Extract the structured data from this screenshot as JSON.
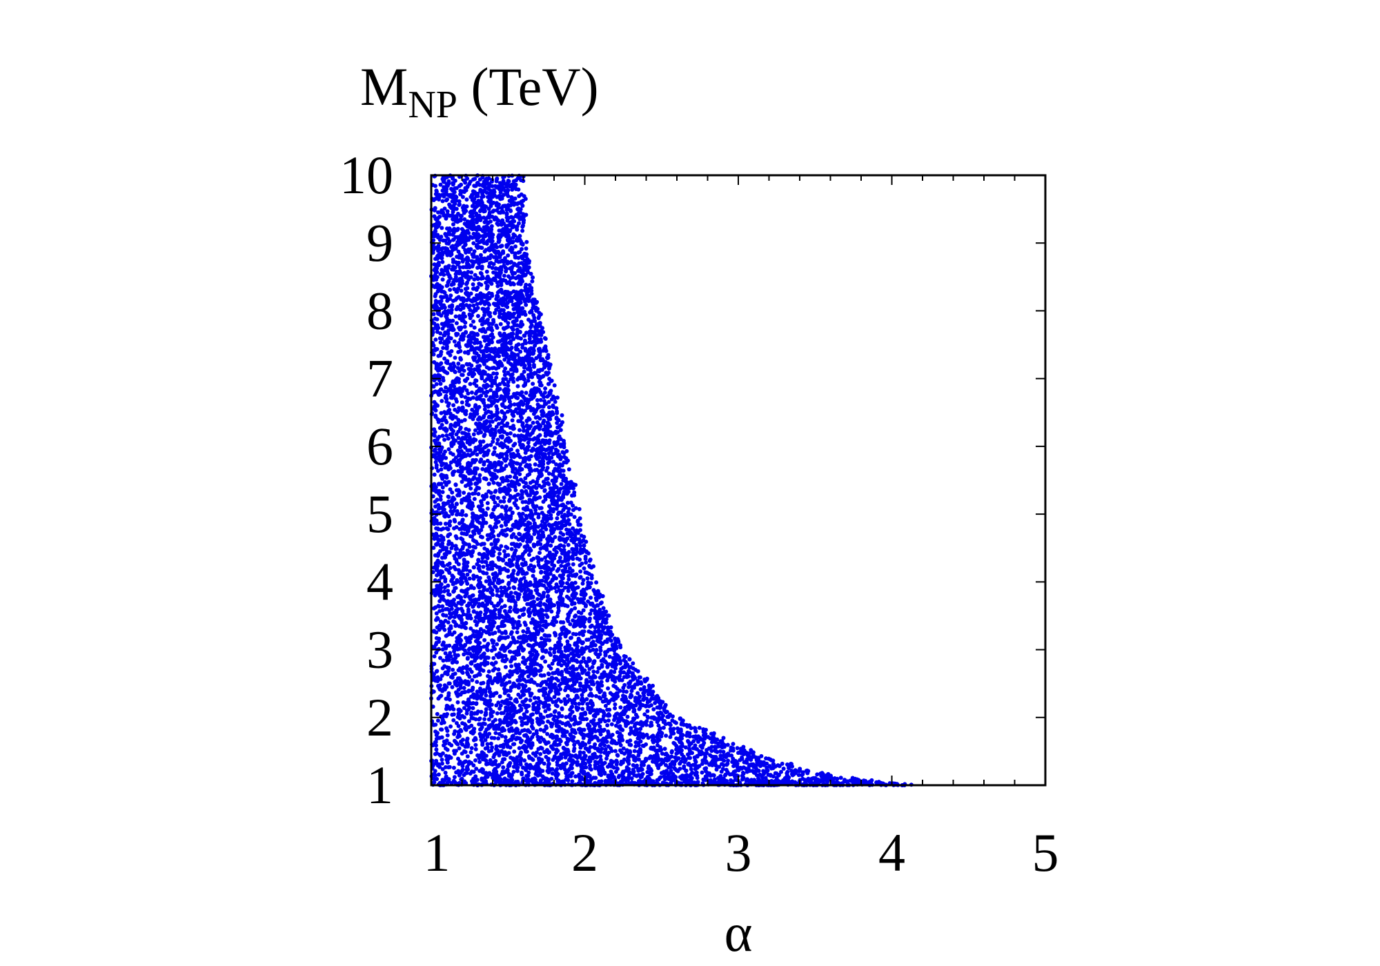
{
  "chart_data": {
    "type": "scatter",
    "title": "",
    "xlabel": "α",
    "ylabel": {
      "main": "M",
      "subscript": "NP",
      "unit": " (TeV)"
    },
    "xlim": [
      1,
      5
    ],
    "ylim": [
      1,
      10
    ],
    "xticks": [
      "1",
      "2",
      "3",
      "4",
      "5"
    ],
    "yticks": [
      "1",
      "2",
      "3",
      "4",
      "5",
      "6",
      "7",
      "8",
      "9",
      "10"
    ],
    "x_minor_ticks_per_major": 5,
    "grid": false,
    "legend": "none",
    "marker_color": "#0000ee",
    "series": [
      {
        "description_of_region": "allowed points fill area bounded by x ≥ 1 and upper edge curve",
        "upper_edge": [
          {
            "x": 1.0,
            "y": 10.0
          },
          {
            "x": 1.6,
            "y": 10.0
          },
          {
            "x": 1.62,
            "y": 9.0
          },
          {
            "x": 1.7,
            "y": 8.0
          },
          {
            "x": 1.8,
            "y": 7.0
          },
          {
            "x": 1.88,
            "y": 6.0
          },
          {
            "x": 1.97,
            "y": 5.0
          },
          {
            "x": 2.07,
            "y": 4.0
          },
          {
            "x": 2.25,
            "y": 3.0
          },
          {
            "x": 2.6,
            "y": 2.0
          },
          {
            "x": 3.2,
            "y": 1.4
          },
          {
            "x": 3.6,
            "y": 1.15
          },
          {
            "x": 4.15,
            "y": 1.0
          }
        ]
      }
    ]
  }
}
